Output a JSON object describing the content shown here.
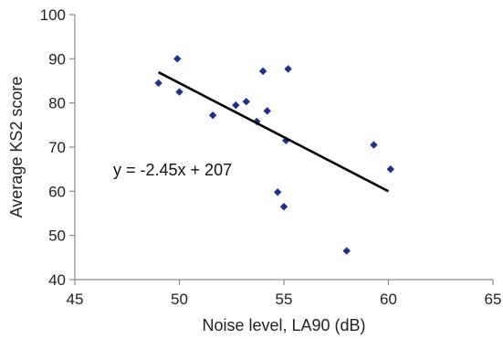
{
  "chart_data": {
    "type": "scatter",
    "xlabel": "Noise level, LA90 (dB)",
    "ylabel": "Average KS2 score",
    "xlim": [
      45,
      65
    ],
    "ylim": [
      40,
      100
    ],
    "x_ticks": [
      "45",
      "50",
      "55",
      "60",
      "65"
    ],
    "y_ticks": [
      "40",
      "50",
      "60",
      "70",
      "80",
      "90",
      "100"
    ],
    "grid": false,
    "legend": "none",
    "marker": "diamond",
    "marker_color": "#1f2f8f",
    "trend_color": "#000000",
    "points": [
      {
        "x": 49.0,
        "y": 84.5
      },
      {
        "x": 49.9,
        "y": 90.0
      },
      {
        "x": 50.0,
        "y": 82.5
      },
      {
        "x": 51.6,
        "y": 77.2
      },
      {
        "x": 52.7,
        "y": 79.5
      },
      {
        "x": 53.2,
        "y": 80.3
      },
      {
        "x": 53.7,
        "y": 75.8
      },
      {
        "x": 54.0,
        "y": 87.2
      },
      {
        "x": 54.2,
        "y": 78.2
      },
      {
        "x": 54.7,
        "y": 59.8
      },
      {
        "x": 55.0,
        "y": 56.5
      },
      {
        "x": 55.1,
        "y": 71.5
      },
      {
        "x": 55.2,
        "y": 87.7
      },
      {
        "x": 58.0,
        "y": 46.5
      },
      {
        "x": 59.3,
        "y": 70.5
      },
      {
        "x": 60.1,
        "y": 65.0
      }
    ],
    "trendline": {
      "slope": -2.45,
      "intercept": 207,
      "x_range": [
        49,
        60
      ],
      "equation_label": "y = -2.45x + 207"
    }
  }
}
